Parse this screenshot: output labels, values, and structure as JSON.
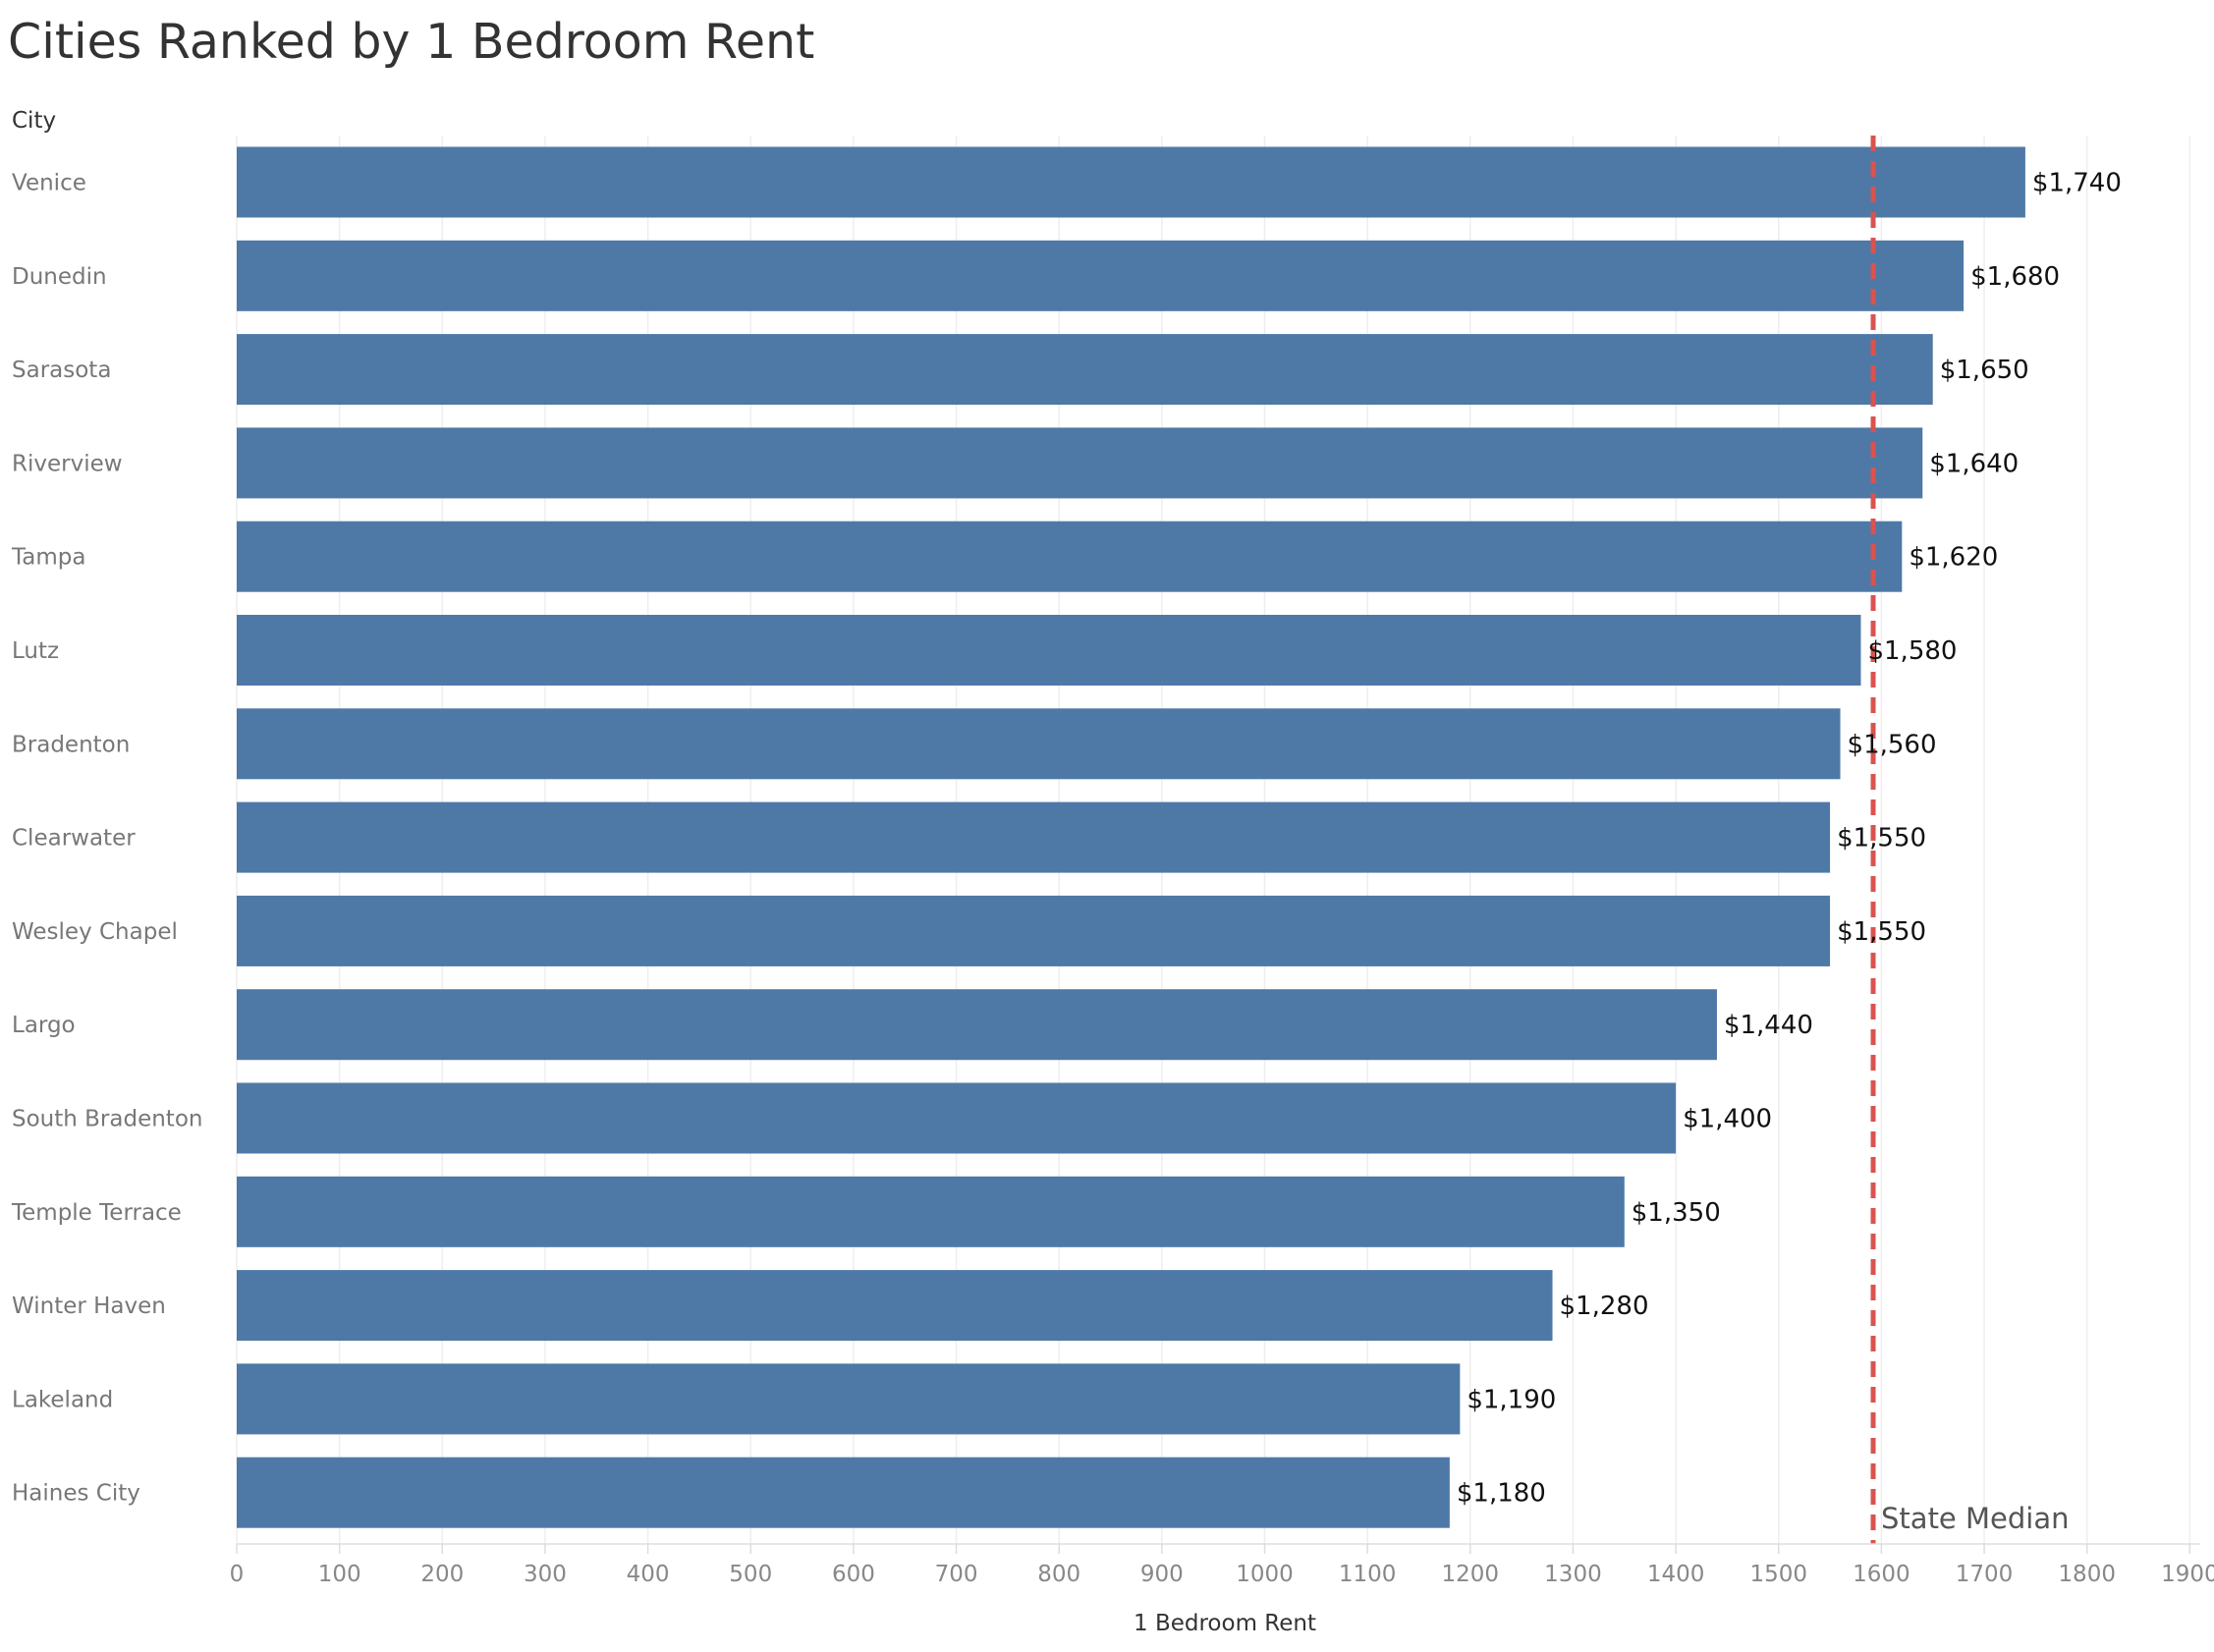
{
  "chart_data": {
    "type": "bar",
    "orientation": "horizontal",
    "title": "Cities Ranked by 1 Bedroom Rent",
    "ylabel": "City",
    "xlabel": "1 Bedroom Rent",
    "categories": [
      "Venice",
      "Dunedin",
      "Sarasota",
      "Riverview",
      "Tampa",
      "Lutz",
      "Bradenton",
      "Clearwater",
      "Wesley Chapel",
      "Largo",
      "South Bradenton",
      "Temple Terrace",
      "Winter Haven",
      "Lakeland",
      "Haines City"
    ],
    "values": [
      1740,
      1680,
      1650,
      1640,
      1620,
      1580,
      1560,
      1550,
      1550,
      1440,
      1400,
      1350,
      1280,
      1190,
      1180
    ],
    "value_labels": [
      "$1,740",
      "$1,680",
      "$1,650",
      "$1,640",
      "$1,620",
      "$1,580",
      "$1,560",
      "$1,550",
      "$1,550",
      "$1,440",
      "$1,400",
      "$1,350",
      "$1,280",
      "$1,190",
      "$1,180"
    ],
    "xlim": [
      0,
      1900
    ],
    "xticks": [
      0,
      100,
      200,
      300,
      400,
      500,
      600,
      700,
      800,
      900,
      1000,
      1100,
      1200,
      1300,
      1400,
      1500,
      1600,
      1700,
      1800,
      1900
    ],
    "reference_line": {
      "label": "State Median",
      "value": 1592,
      "style": "dashed",
      "color": "#d9534f"
    },
    "bar_color": "#4e79a7",
    "grid": {
      "vertical": true,
      "horizontal": false
    }
  }
}
